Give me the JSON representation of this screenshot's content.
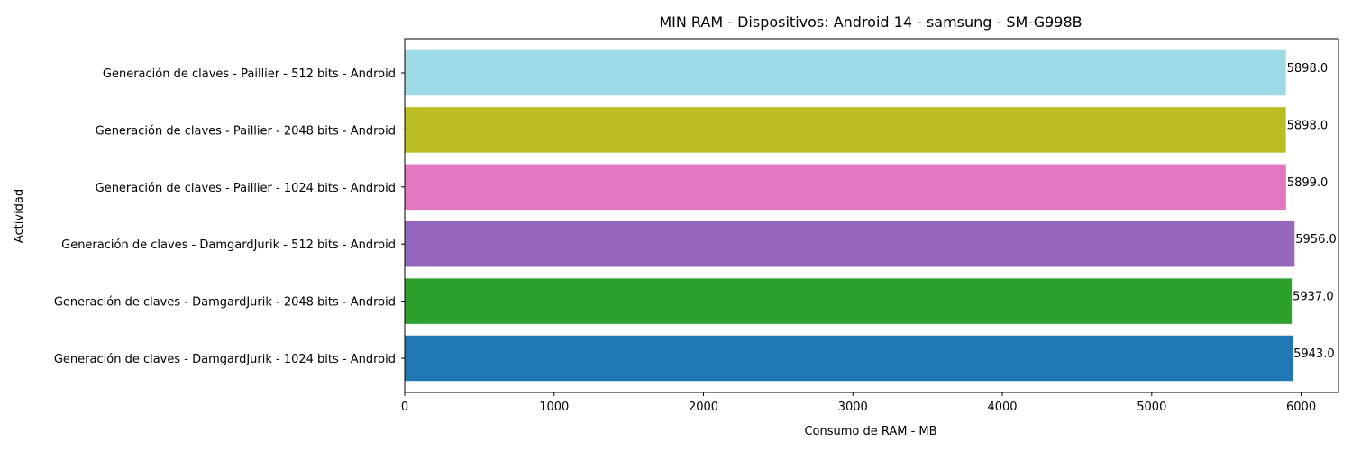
{
  "chart_data": {
    "type": "bar",
    "orientation": "horizontal",
    "title": "MIN RAM - Dispositivos: Android 14 - samsung - SM-G998B",
    "xlabel": "Consumo de RAM - MB",
    "ylabel": "Actividad",
    "xlim": [
      0,
      6250
    ],
    "x_ticks": [
      0,
      1000,
      2000,
      3000,
      4000,
      5000,
      6000
    ],
    "x_tick_labels": [
      "0",
      "1000",
      "2000",
      "3000",
      "4000",
      "5000",
      "6000"
    ],
    "grid": false,
    "legend": "none",
    "categories": [
      "Generación de claves - DamgardJurik - 1024 bits - Android",
      "Generación de claves - DamgardJurik - 2048 bits - Android",
      "Generación de claves - DamgardJurik - 512 bits - Android",
      "Generación de claves - Paillier - 1024 bits - Android",
      "Generación de claves - Paillier - 2048 bits - Android",
      "Generación de claves - Paillier - 512 bits - Android"
    ],
    "values": [
      5943.0,
      5937.0,
      5956.0,
      5899.0,
      5898.0,
      5898.0
    ],
    "value_labels": [
      "5943.0",
      "5937.0",
      "5956.0",
      "5899.0",
      "5898.0",
      "5898.0"
    ],
    "colors": [
      "#1f77b4",
      "#2ca02c",
      "#9467bd",
      "#e377c2",
      "#bcbd22",
      "#9edae5"
    ]
  }
}
